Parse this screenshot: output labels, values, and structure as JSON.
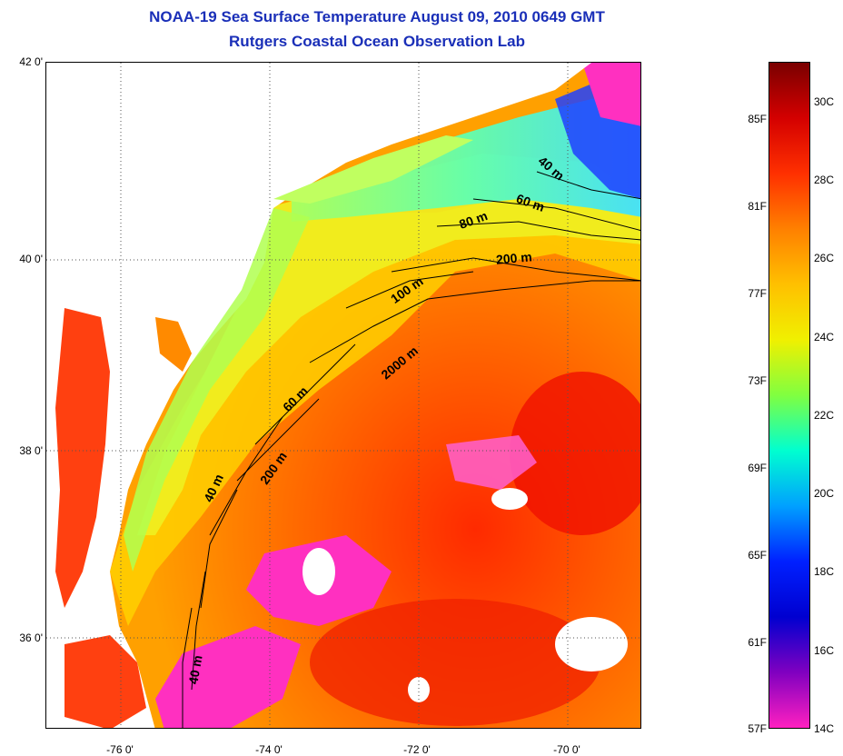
{
  "title": {
    "line1": "NOAA-19 Sea Surface Temperature August 09, 2010 0649 GMT",
    "line2": "Rutgers Coastal Ocean Observation Lab"
  },
  "map": {
    "y_ticks": [
      "42 0'",
      "40 0'",
      "38 0'",
      "36 0'"
    ],
    "x_ticks": [
      "-76 0'",
      "-74 0'",
      "-72 0'",
      "-70 0'"
    ],
    "contour_labels": [
      "40 m",
      "60 m",
      "80 m",
      "200 m",
      "100 m",
      "2000 m",
      "60 m",
      "200 m",
      "40 m",
      "40 m"
    ]
  },
  "colorbar": {
    "fahrenheit": [
      "85F",
      "81F",
      "77F",
      "73F",
      "69F",
      "65F",
      "61F",
      "57F"
    ],
    "celsius": [
      "30C",
      "28C",
      "26C",
      "24C",
      "22C",
      "20C",
      "18C",
      "16C",
      "14C"
    ],
    "colors": [
      "#7a0000",
      "#d40000",
      "#ff3000",
      "#ff8000",
      "#ffc000",
      "#f0f000",
      "#80ff40",
      "#00ffd0",
      "#00a0ff",
      "#0020ff",
      "#0000d0",
      "#8000c0",
      "#ff20c0"
    ]
  }
}
